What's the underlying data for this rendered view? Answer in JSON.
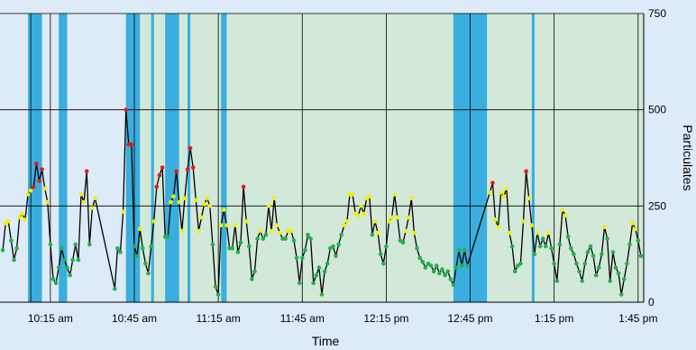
{
  "chart_data": {
    "type": "line",
    "title": "",
    "xlabel": "Time",
    "ylabel": "Particulates",
    "ylim": [
      0,
      750
    ],
    "yticks": [
      0,
      250,
      500,
      750
    ],
    "xlim": [
      "09:57",
      "13:47"
    ],
    "xticks": [
      {
        "time": "10:15",
        "label": "10:15 am"
      },
      {
        "time": "10:45",
        "label": "10:45 am"
      },
      {
        "time": "11:15",
        "label": "11:15 am"
      },
      {
        "time": "11:45",
        "label": "11:45 am"
      },
      {
        "time": "12:15",
        "label": "12:15 pm"
      },
      {
        "time": "12:45",
        "label": "12:45 pm"
      },
      {
        "time": "13:15",
        "label": "1:15 pm"
      },
      {
        "time": "13:45",
        "label": "1:45 pm"
      }
    ],
    "extra_gridlines": [
      "10:08"
    ],
    "grid": true,
    "colors": {
      "background": "#ddeaf7",
      "shaded_region": "#d2e8d9",
      "band": "#3aaede",
      "line": "#000000",
      "grid": "#000000",
      "low": "#22b14c",
      "medium": "#f0f000",
      "high": "#e31a1c"
    },
    "shaded_regions": [
      {
        "start": "10:18",
        "end": "10:20"
      },
      {
        "start": "10:43",
        "end": "13:47"
      }
    ],
    "bands": [
      {
        "start": "10:07",
        "end": "10:12"
      },
      {
        "start": "10:18",
        "end": "10:21"
      },
      {
        "start": "10:42",
        "end": "10:47"
      },
      {
        "start": "10:51",
        "end": "10:52"
      },
      {
        "start": "10:56",
        "end": "11:01"
      },
      {
        "start": "11:04",
        "end": "11:05"
      },
      {
        "start": "11:16",
        "end": "11:18"
      },
      {
        "start": "12:39",
        "end": "12:51"
      },
      {
        "start": "13:07",
        "end": "13:08"
      }
    ],
    "series": [
      {
        "points": [
          [
            "09:58",
            135
          ],
          [
            "09:59",
            205
          ],
          [
            "10:00",
            210
          ],
          [
            "10:01",
            160
          ],
          [
            "10:02",
            110
          ],
          [
            "10:03",
            140
          ],
          [
            "10:04",
            220
          ],
          [
            "10:05",
            230
          ],
          [
            "10:06",
            215
          ],
          [
            "10:07",
            280
          ],
          [
            "10:08",
            290
          ],
          [
            "10:09",
            300
          ],
          [
            "10:10",
            360
          ],
          [
            "10:11",
            315
          ],
          [
            "10:12",
            345
          ],
          [
            "10:13",
            295
          ],
          [
            "10:14",
            260
          ],
          [
            "10:15",
            150
          ],
          [
            "10:16",
            60
          ],
          [
            "10:17",
            50
          ],
          [
            "10:18",
            90
          ],
          [
            "10:19",
            140
          ],
          [
            "10:20",
            110
          ],
          [
            "10:21",
            90
          ],
          [
            "10:22",
            70
          ],
          [
            "10:23",
            110
          ],
          [
            "10:24",
            150
          ],
          [
            "10:25",
            110
          ],
          [
            "10:26",
            280
          ],
          [
            "10:27",
            260
          ],
          [
            "10:28",
            340
          ],
          [
            "10:29",
            150
          ],
          [
            "10:30",
            245
          ],
          [
            "10:31",
            270
          ],
          [
            "10:38",
            35
          ],
          [
            "10:39",
            140
          ],
          [
            "10:40",
            130
          ],
          [
            "10:41",
            235
          ],
          [
            "10:42",
            500
          ],
          [
            "10:43",
            410
          ],
          [
            "10:44",
            410
          ],
          [
            "10:45",
            145
          ],
          [
            "10:46",
            120
          ],
          [
            "10:47",
            190
          ],
          [
            "10:48",
            140
          ],
          [
            "10:49",
            100
          ],
          [
            "10:50",
            75
          ],
          [
            "10:51",
            145
          ],
          [
            "10:52",
            210
          ],
          [
            "10:53",
            300
          ],
          [
            "10:54",
            330
          ],
          [
            "10:55",
            350
          ],
          [
            "10:56",
            170
          ],
          [
            "10:57",
            170
          ],
          [
            "10:58",
            260
          ],
          [
            "10:59",
            275
          ],
          [
            "11:00",
            340
          ],
          [
            "11:01",
            260
          ],
          [
            "11:02",
            185
          ],
          [
            "11:03",
            270
          ],
          [
            "11:04",
            345
          ],
          [
            "11:05",
            400
          ],
          [
            "11:06",
            350
          ],
          [
            "11:07",
            265
          ],
          [
            "11:08",
            185
          ],
          [
            "11:09",
            220
          ],
          [
            "11:10",
            255
          ],
          [
            "11:11",
            270
          ],
          [
            "11:12",
            250
          ],
          [
            "11:13",
            150
          ],
          [
            "11:14",
            40
          ],
          [
            "11:15",
            20
          ],
          [
            "11:16",
            200
          ],
          [
            "11:17",
            240
          ],
          [
            "11:18",
            200
          ],
          [
            "11:19",
            140
          ],
          [
            "11:20",
            140
          ],
          [
            "11:21",
            200
          ],
          [
            "11:22",
            130
          ],
          [
            "11:23",
            155
          ],
          [
            "11:24",
            300
          ],
          [
            "11:25",
            210
          ],
          [
            "11:26",
            145
          ],
          [
            "11:27",
            60
          ],
          [
            "11:28",
            80
          ],
          [
            "11:29",
            165
          ],
          [
            "11:30",
            185
          ],
          [
            "11:31",
            165
          ],
          [
            "11:32",
            175
          ],
          [
            "11:33",
            250
          ],
          [
            "11:34",
            185
          ],
          [
            "11:35",
            270
          ],
          [
            "11:36",
            200
          ],
          [
            "11:37",
            180
          ],
          [
            "11:38",
            165
          ],
          [
            "11:39",
            165
          ],
          [
            "11:40",
            185
          ],
          [
            "11:41",
            185
          ],
          [
            "11:42",
            160
          ],
          [
            "11:43",
            115
          ],
          [
            "11:44",
            50
          ],
          [
            "11:45",
            115
          ],
          [
            "11:46",
            135
          ],
          [
            "11:47",
            175
          ],
          [
            "11:48",
            165
          ],
          [
            "11:49",
            50
          ],
          [
            "11:50",
            70
          ],
          [
            "11:51",
            90
          ],
          [
            "11:52",
            20
          ],
          [
            "11:53",
            80
          ],
          [
            "11:54",
            100
          ],
          [
            "11:55",
            140
          ],
          [
            "11:56",
            145
          ],
          [
            "11:57",
            120
          ],
          [
            "11:58",
            150
          ],
          [
            "11:59",
            175
          ],
          [
            "12:00",
            200
          ],
          [
            "12:01",
            210
          ],
          [
            "12:02",
            280
          ],
          [
            "12:03",
            280
          ],
          [
            "12:04",
            230
          ],
          [
            "12:05",
            225
          ],
          [
            "12:06",
            250
          ],
          [
            "12:07",
            230
          ],
          [
            "12:08",
            270
          ],
          [
            "12:09",
            275
          ],
          [
            "12:10",
            175
          ],
          [
            "12:11",
            210
          ],
          [
            "12:12",
            180
          ],
          [
            "12:13",
            125
          ],
          [
            "12:14",
            100
          ],
          [
            "12:15",
            145
          ],
          [
            "12:16",
            210
          ],
          [
            "12:17",
            220
          ],
          [
            "12:18",
            280
          ],
          [
            "12:19",
            220
          ],
          [
            "12:20",
            160
          ],
          [
            "12:21",
            155
          ],
          [
            "12:22",
            185
          ],
          [
            "12:23",
            220
          ],
          [
            "12:24",
            270
          ],
          [
            "12:25",
            180
          ],
          [
            "12:26",
            140
          ],
          [
            "12:27",
            115
          ],
          [
            "12:28",
            105
          ],
          [
            "12:29",
            90
          ],
          [
            "12:30",
            100
          ],
          [
            "12:31",
            95
          ],
          [
            "12:32",
            80
          ],
          [
            "12:33",
            95
          ],
          [
            "12:34",
            75
          ],
          [
            "12:35",
            85
          ],
          [
            "12:36",
            70
          ],
          [
            "12:37",
            80
          ],
          [
            "12:38",
            60
          ],
          [
            "12:39",
            45
          ],
          [
            "12:40",
            90
          ],
          [
            "12:41",
            135
          ],
          [
            "12:42",
            95
          ],
          [
            "12:43",
            135
          ],
          [
            "12:44",
            95
          ],
          [
            "12:52",
            285
          ],
          [
            "12:53",
            310
          ],
          [
            "12:54",
            215
          ],
          [
            "12:55",
            195
          ],
          [
            "12:56",
            285
          ],
          [
            "12:57",
            275
          ],
          [
            "12:58",
            295
          ],
          [
            "12:59",
            180
          ],
          [
            "13:00",
            145
          ],
          [
            "13:01",
            80
          ],
          [
            "13:02",
            95
          ],
          [
            "13:03",
            100
          ],
          [
            "13:04",
            210
          ],
          [
            "13:05",
            340
          ],
          [
            "13:06",
            270
          ],
          [
            "13:07",
            200
          ],
          [
            "13:08",
            125
          ],
          [
            "13:09",
            180
          ],
          [
            "13:10",
            145
          ],
          [
            "13:11",
            165
          ],
          [
            "13:12",
            145
          ],
          [
            "13:13",
            180
          ],
          [
            "13:14",
            140
          ],
          [
            "13:15",
            100
          ],
          [
            "13:16",
            55
          ],
          [
            "13:17",
            150
          ],
          [
            "13:18",
            240
          ],
          [
            "13:19",
            225
          ],
          [
            "13:20",
            170
          ],
          [
            "13:21",
            140
          ],
          [
            "13:22",
            125
          ],
          [
            "13:23",
            100
          ],
          [
            "13:24",
            80
          ],
          [
            "13:25",
            55
          ],
          [
            "13:26",
            100
          ],
          [
            "13:27",
            130
          ],
          [
            "13:28",
            145
          ],
          [
            "13:29",
            120
          ],
          [
            "13:30",
            70
          ],
          [
            "13:31",
            90
          ],
          [
            "13:32",
            125
          ],
          [
            "13:33",
            195
          ],
          [
            "13:34",
            165
          ],
          [
            "13:35",
            55
          ],
          [
            "13:36",
            130
          ],
          [
            "13:37",
            90
          ],
          [
            "13:38",
            75
          ],
          [
            "13:39",
            20
          ],
          [
            "13:40",
            60
          ],
          [
            "13:41",
            100
          ],
          [
            "13:42",
            150
          ],
          [
            "13:43",
            205
          ],
          [
            "13:44",
            190
          ],
          [
            "13:45",
            160
          ],
          [
            "13:46",
            120
          ]
        ]
      }
    ],
    "thresholds": {
      "medium": 180,
      "high": 300
    }
  }
}
